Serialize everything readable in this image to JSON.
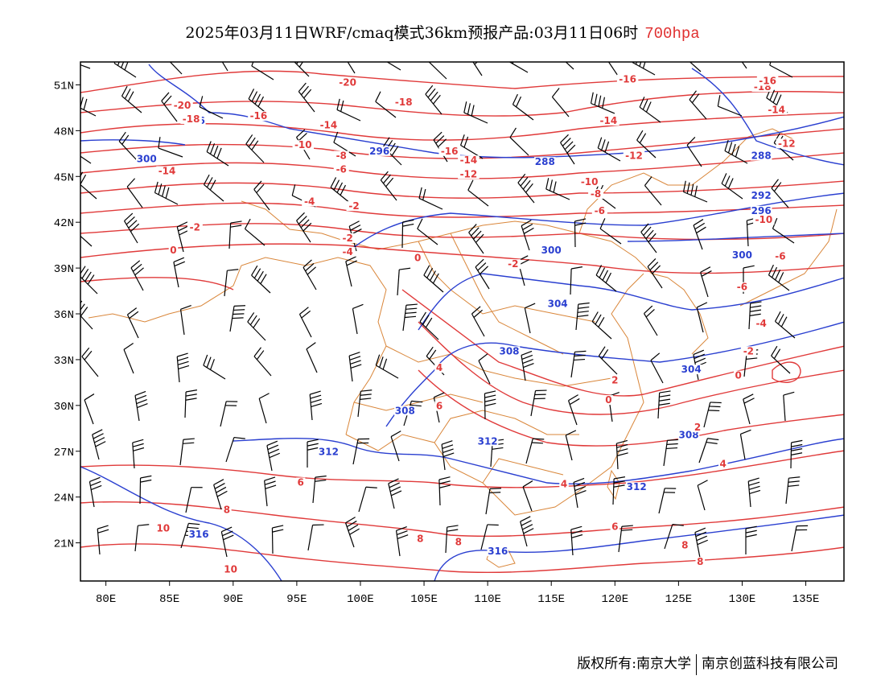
{
  "title": {
    "main": "2025年03月11日WRF/cmaq模式36km预报产品:03月11日06时",
    "level": "700hpa"
  },
  "colors": {
    "height_contour": "#2a3fd0",
    "temperature_contour": "#e03a3a",
    "border": "#d9863a",
    "wind_barb": "#000000",
    "level_text": "#e03030"
  },
  "axes": {
    "x_ticks": [
      "80E",
      "85E",
      "90E",
      "95E",
      "100E",
      "105E",
      "110E",
      "115E",
      "120E",
      "125E",
      "130E",
      "135E"
    ],
    "y_ticks": [
      "51N",
      "48N",
      "45N",
      "42N",
      "39N",
      "36N",
      "33N",
      "30N",
      "27N",
      "24N",
      "21N"
    ],
    "lon_range": [
      78,
      138
    ],
    "lat_range": [
      18.5,
      52.5
    ]
  },
  "chart_data": {
    "type": "map",
    "height_contours": [
      {
        "value": "288",
        "label_positions": [
          [
            114.5,
            45.8
          ],
          [
            131.5,
            46.2
          ]
        ]
      },
      {
        "value": "292",
        "label_positions": [
          [
            131.5,
            43.6
          ]
        ]
      },
      {
        "value": "296",
        "label_positions": [
          [
            87.0,
            48.5
          ],
          [
            101.5,
            46.5
          ],
          [
            131.5,
            42.6
          ]
        ]
      },
      {
        "value": "300",
        "label_positions": [
          [
            83.2,
            46.0
          ],
          [
            115.0,
            40.0
          ],
          [
            130.0,
            39.7
          ]
        ]
      },
      {
        "value": "304",
        "label_positions": [
          [
            115.5,
            36.5
          ],
          [
            126.0,
            32.2
          ]
        ]
      },
      {
        "value": "308",
        "label_positions": [
          [
            103.5,
            29.5
          ],
          [
            111.7,
            33.4
          ],
          [
            125.8,
            27.9
          ]
        ]
      },
      {
        "value": "312",
        "label_positions": [
          [
            97.5,
            26.8
          ],
          [
            110.0,
            27.5
          ],
          [
            121.7,
            24.5
          ]
        ]
      },
      {
        "value": "316",
        "label_positions": [
          [
            87.3,
            21.4
          ],
          [
            110.8,
            20.3
          ]
        ]
      }
    ],
    "temperature_contours": [
      {
        "value": "-20",
        "label_positions": [
          [
            86.0,
            49.5
          ],
          [
            99.0,
            51.0
          ]
        ]
      },
      {
        "value": "-18",
        "label_positions": [
          [
            86.7,
            48.6
          ],
          [
            103.4,
            49.7
          ],
          [
            131.6,
            50.7
          ]
        ]
      },
      {
        "value": "-16",
        "label_positions": [
          [
            92.0,
            48.8
          ],
          [
            107.0,
            46.5
          ],
          [
            121.0,
            51.2
          ],
          [
            132.0,
            51.1
          ]
        ]
      },
      {
        "value": "-14",
        "label_positions": [
          [
            84.8,
            45.2
          ],
          [
            97.5,
            48.2
          ],
          [
            108.5,
            45.9
          ],
          [
            119.5,
            48.5
          ],
          [
            132.7,
            49.2
          ]
        ]
      },
      {
        "value": "-12",
        "label_positions": [
          [
            108.5,
            45.0
          ],
          [
            121.5,
            46.2
          ],
          [
            133.5,
            47.0
          ]
        ]
      },
      {
        "value": "-10",
        "label_positions": [
          [
            95.5,
            46.9
          ],
          [
            118.0,
            44.5
          ],
          [
            131.7,
            42.0
          ]
        ]
      },
      {
        "value": "-8",
        "label_positions": [
          [
            98.5,
            46.2
          ],
          [
            118.5,
            43.7
          ]
        ]
      },
      {
        "value": "-6",
        "label_positions": [
          [
            98.5,
            45.3
          ],
          [
            118.8,
            42.6
          ],
          [
            130.0,
            37.6
          ],
          [
            133.0,
            39.6
          ]
        ]
      },
      {
        "value": "-4",
        "label_positions": [
          [
            78.5,
            41.7
          ],
          [
            96.0,
            43.2
          ],
          [
            99.0,
            39.9
          ],
          [
            131.5,
            35.2
          ]
        ]
      },
      {
        "value": "-2",
        "label_positions": [
          [
            87.0,
            41.5
          ],
          [
            99.5,
            42.9
          ],
          [
            99.0,
            40.8
          ],
          [
            112.0,
            39.1
          ],
          [
            130.5,
            33.4
          ]
        ]
      },
      {
        "value": "0",
        "label_positions": [
          [
            85.3,
            40.0
          ],
          [
            104.5,
            39.5
          ],
          [
            119.5,
            30.2
          ],
          [
            129.7,
            31.8
          ]
        ]
      },
      {
        "value": "2",
        "label_positions": [
          [
            120.0,
            31.5
          ],
          [
            126.5,
            28.4
          ]
        ]
      },
      {
        "value": "4",
        "label_positions": [
          [
            106.2,
            32.3
          ],
          [
            116.0,
            24.7
          ],
          [
            128.5,
            26.0
          ]
        ]
      },
      {
        "value": "6",
        "label_positions": [
          [
            95.3,
            24.8
          ],
          [
            106.2,
            29.8
          ],
          [
            120.0,
            21.9
          ]
        ]
      },
      {
        "value": "8",
        "label_positions": [
          [
            89.5,
            23.0
          ],
          [
            104.7,
            21.1
          ],
          [
            107.7,
            20.9
          ],
          [
            125.5,
            20.7
          ],
          [
            126.7,
            19.6
          ]
        ]
      },
      {
        "value": "10",
        "label_positions": [
          [
            84.5,
            21.8
          ],
          [
            89.8,
            19.1
          ]
        ]
      }
    ]
  },
  "footer": {
    "left": "版权所有:南京大学",
    "right": "南京创蓝科技有限公司"
  }
}
